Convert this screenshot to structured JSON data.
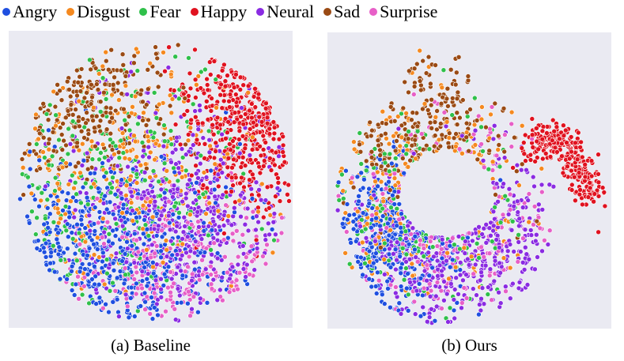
{
  "chart_data": {
    "type": "scatter",
    "legend": {
      "placement": "top",
      "entries": [
        {
          "key": "Angry",
          "label": "Angry",
          "color": "#1f4fe0"
        },
        {
          "key": "Disgust",
          "label": "Disgust",
          "color": "#f5891f"
        },
        {
          "key": "Fear",
          "label": "Fear",
          "color": "#2fc04a"
        },
        {
          "key": "Happy",
          "label": "Happy",
          "color": "#e0121f"
        },
        {
          "key": "Neural",
          "label": "Neural",
          "color": "#8a2be2"
        },
        {
          "key": "Sad",
          "label": "Sad",
          "color": "#9a4a14"
        },
        {
          "key": "Surprise",
          "label": "Surprise",
          "color": "#e75fc7"
        }
      ]
    },
    "grid": false,
    "axes_visible": false,
    "panels": [
      {
        "caption": "(a) Baseline",
        "point_count": 2600,
        "clusters": [
          {
            "class": "Happy",
            "region": "upper-right"
          },
          {
            "class": "Sad",
            "region": "upper-left"
          },
          {
            "class": "Angry",
            "region": "lower-left"
          },
          {
            "class": "Neural",
            "region": "center-right"
          },
          {
            "class": "Surprise",
            "region": "lower"
          }
        ]
      },
      {
        "caption": "(b) Ours",
        "point_count": 1900,
        "clusters": [
          {
            "class": "Happy",
            "region": "right arm"
          },
          {
            "class": "Sad",
            "region": "top and upper-left"
          },
          {
            "class": "Angry",
            "region": "left and lower-left"
          },
          {
            "class": "Neural",
            "region": "center to lower-right"
          },
          {
            "class": "Surprise",
            "region": "center"
          }
        ]
      }
    ]
  }
}
